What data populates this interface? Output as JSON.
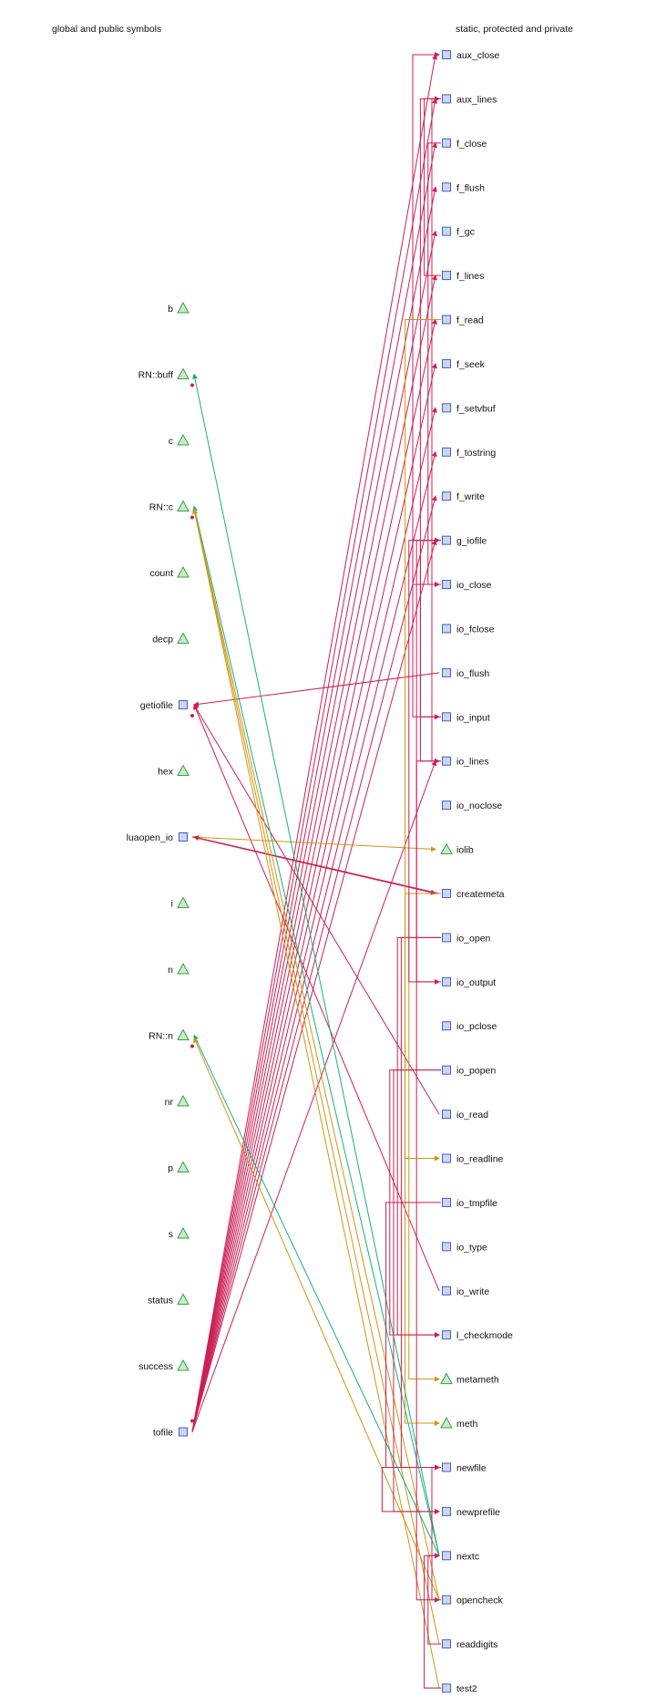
{
  "headers": {
    "left": "global and public symbols",
    "right": "static, protected and private"
  },
  "colors": {
    "call": "#cc1f56",
    "use_green": "#18b07a",
    "use_orange": "#cf9514",
    "box_fill": "#c8d8f4",
    "box_stroke": "#4a5bbf",
    "tri_fill": "#c8ecc8",
    "tri_stroke": "#38a048"
  },
  "left_symbols": [
    {
      "id": "b",
      "label": "b",
      "shape": "triangle"
    },
    {
      "id": "RN::buff",
      "label": "RN::buff",
      "shape": "triangle"
    },
    {
      "id": "c",
      "label": "c",
      "shape": "triangle"
    },
    {
      "id": "RN::c",
      "label": "RN::c",
      "shape": "triangle"
    },
    {
      "id": "count",
      "label": "count",
      "shape": "triangle"
    },
    {
      "id": "decp",
      "label": "decp",
      "shape": "triangle"
    },
    {
      "id": "getiofile",
      "label": "getiofile",
      "shape": "box"
    },
    {
      "id": "hex",
      "label": "hex",
      "shape": "triangle"
    },
    {
      "id": "luaopen_io",
      "label": "luaopen_io",
      "shape": "box"
    },
    {
      "id": "i",
      "label": "i",
      "shape": "triangle"
    },
    {
      "id": "n",
      "label": "n",
      "shape": "triangle"
    },
    {
      "id": "RN::n",
      "label": "RN::n",
      "shape": "triangle"
    },
    {
      "id": "nr",
      "label": "nr",
      "shape": "triangle"
    },
    {
      "id": "p",
      "label": "p",
      "shape": "triangle"
    },
    {
      "id": "s",
      "label": "s",
      "shape": "triangle"
    },
    {
      "id": "status",
      "label": "status",
      "shape": "triangle"
    },
    {
      "id": "success",
      "label": "success",
      "shape": "triangle"
    },
    {
      "id": "tofile",
      "label": "tofile",
      "shape": "box"
    }
  ],
  "right_symbols": [
    {
      "id": "aux_close",
      "label": "aux_close",
      "shape": "box"
    },
    {
      "id": "aux_lines",
      "label": "aux_lines",
      "shape": "box"
    },
    {
      "id": "f_close",
      "label": "f_close",
      "shape": "box"
    },
    {
      "id": "f_flush",
      "label": "f_flush",
      "shape": "box"
    },
    {
      "id": "f_gc",
      "label": "f_gc",
      "shape": "box"
    },
    {
      "id": "f_lines",
      "label": "f_lines",
      "shape": "box"
    },
    {
      "id": "f_read",
      "label": "f_read",
      "shape": "box"
    },
    {
      "id": "f_seek",
      "label": "f_seek",
      "shape": "box"
    },
    {
      "id": "f_setvbuf",
      "label": "f_setvbuf",
      "shape": "box"
    },
    {
      "id": "f_tostring",
      "label": "f_tostring",
      "shape": "box"
    },
    {
      "id": "f_write",
      "label": "f_write",
      "shape": "box"
    },
    {
      "id": "g_iofile",
      "label": "g_iofile",
      "shape": "box"
    },
    {
      "id": "io_close",
      "label": "io_close",
      "shape": "box"
    },
    {
      "id": "io_fclose",
      "label": "io_fclose",
      "shape": "box"
    },
    {
      "id": "io_flush",
      "label": "io_flush",
      "shape": "box"
    },
    {
      "id": "io_input",
      "label": "io_input",
      "shape": "box"
    },
    {
      "id": "io_lines",
      "label": "io_lines",
      "shape": "box"
    },
    {
      "id": "io_noclose",
      "label": "io_noclose",
      "shape": "box"
    },
    {
      "id": "iolib",
      "label": "iolib",
      "shape": "triangle"
    },
    {
      "id": "createmeta",
      "label": "createmeta",
      "shape": "box"
    },
    {
      "id": "io_open",
      "label": "io_open",
      "shape": "box"
    },
    {
      "id": "io_output",
      "label": "io_output",
      "shape": "box"
    },
    {
      "id": "io_pclose",
      "label": "io_pclose",
      "shape": "box"
    },
    {
      "id": "io_popen",
      "label": "io_popen",
      "shape": "box"
    },
    {
      "id": "io_read",
      "label": "io_read",
      "shape": "box"
    },
    {
      "id": "io_readline",
      "label": "io_readline",
      "shape": "box"
    },
    {
      "id": "io_tmpfile",
      "label": "io_tmpfile",
      "shape": "box"
    },
    {
      "id": "io_type",
      "label": "io_type",
      "shape": "box"
    },
    {
      "id": "io_write",
      "label": "io_write",
      "shape": "box"
    },
    {
      "id": "l_checkmode",
      "label": "l_checkmode",
      "shape": "box"
    },
    {
      "id": "metameth",
      "label": "metameth",
      "shape": "triangle"
    },
    {
      "id": "meth",
      "label": "meth",
      "shape": "triangle"
    },
    {
      "id": "newfile",
      "label": "newfile",
      "shape": "box"
    },
    {
      "id": "newprefile",
      "label": "newprefile",
      "shape": "box"
    },
    {
      "id": "nextc",
      "label": "nextc",
      "shape": "box"
    },
    {
      "id": "opencheck",
      "label": "opencheck",
      "shape": "box"
    },
    {
      "id": "readdigits",
      "label": "readdigits",
      "shape": "box"
    },
    {
      "id": "test2",
      "label": "test2",
      "shape": "box"
    }
  ],
  "edges_left_to_right": [
    {
      "from": "tofile",
      "to": "aux_close",
      "kind": "call"
    },
    {
      "from": "tofile",
      "to": "aux_lines",
      "kind": "call"
    },
    {
      "from": "tofile",
      "to": "f_close",
      "kind": "call"
    },
    {
      "from": "tofile",
      "to": "f_flush",
      "kind": "call"
    },
    {
      "from": "tofile",
      "to": "f_gc",
      "kind": "call"
    },
    {
      "from": "tofile",
      "to": "f_lines",
      "kind": "call"
    },
    {
      "from": "tofile",
      "to": "f_read",
      "kind": "call"
    },
    {
      "from": "tofile",
      "to": "f_seek",
      "kind": "call"
    },
    {
      "from": "tofile",
      "to": "f_setvbuf",
      "kind": "call"
    },
    {
      "from": "tofile",
      "to": "f_tostring",
      "kind": "call"
    },
    {
      "from": "tofile",
      "to": "f_write",
      "kind": "call"
    },
    {
      "from": "tofile",
      "to": "g_iofile",
      "kind": "call"
    },
    {
      "from": "tofile",
      "to": "io_lines",
      "kind": "call"
    },
    {
      "from": "io_flush",
      "to": "getiofile",
      "kind": "call",
      "reverse": true
    },
    {
      "from": "io_read",
      "to": "getiofile",
      "kind": "call",
      "reverse": true
    },
    {
      "from": "io_write",
      "to": "getiofile",
      "kind": "call",
      "reverse": true
    },
    {
      "from": "luaopen_io",
      "to": "iolib",
      "kind": "use_orange"
    },
    {
      "from": "luaopen_io",
      "to": "createmeta",
      "kind": "call"
    },
    {
      "from": "createmeta",
      "to": "luaopen_io",
      "kind": "call",
      "reverse": true
    },
    {
      "from": "nextc",
      "to": "RN::buff",
      "kind": "use_green",
      "reverse": true
    },
    {
      "from": "nextc",
      "to": "RN::c",
      "kind": "use_green",
      "reverse": true
    },
    {
      "from": "readdigits",
      "to": "RN::c",
      "kind": "use_orange",
      "reverse": true
    },
    {
      "from": "test2",
      "to": "RN::c",
      "kind": "use_orange",
      "reverse": true
    },
    {
      "from": "opencheck",
      "to": "RN::c",
      "kind": "use_orange",
      "reverse": true
    },
    {
      "from": "nextc",
      "to": "RN::n",
      "kind": "use_green",
      "reverse": true
    },
    {
      "from": "opencheck",
      "to": "RN::n",
      "kind": "use_orange",
      "reverse": true
    }
  ],
  "edges_right_internal": [
    {
      "from": "aux_lines",
      "to": "io_lines",
      "kind": "call"
    },
    {
      "from": "f_close",
      "to": "io_close",
      "kind": "call"
    },
    {
      "from": "f_lines",
      "to": "aux_lines",
      "kind": "call"
    },
    {
      "from": "g_iofile",
      "to": "io_input",
      "kind": "call"
    },
    {
      "from": "g_iofile",
      "to": "io_output",
      "kind": "call"
    },
    {
      "from": "io_close",
      "to": "aux_close",
      "kind": "call"
    },
    {
      "from": "createmeta",
      "to": "metameth",
      "kind": "use_orange"
    },
    {
      "from": "createmeta",
      "to": "meth",
      "kind": "use_orange"
    },
    {
      "from": "io_open",
      "to": "newfile",
      "kind": "call"
    },
    {
      "from": "io_open",
      "to": "l_checkmode",
      "kind": "call"
    },
    {
      "from": "io_popen",
      "to": "newprefile",
      "kind": "call"
    },
    {
      "from": "io_popen",
      "to": "l_checkmode",
      "kind": "call"
    },
    {
      "from": "io_tmpfile",
      "to": "newfile",
      "kind": "call"
    },
    {
      "from": "newfile",
      "to": "newprefile",
      "kind": "call"
    },
    {
      "from": "opencheck",
      "to": "newfile",
      "kind": "call"
    },
    {
      "from": "readdigits",
      "to": "nextc",
      "kind": "call"
    },
    {
      "from": "test2",
      "to": "nextc",
      "kind": "call"
    },
    {
      "from": "io_lines",
      "to": "aux_lines",
      "kind": "call"
    },
    {
      "from": "io_lines",
      "to": "opencheck",
      "kind": "call"
    },
    {
      "from": "io_input",
      "to": "g_iofile",
      "kind": "call"
    },
    {
      "from": "io_output",
      "to": "g_iofile",
      "kind": "call"
    },
    {
      "from": "f_read",
      "to": "io_readline",
      "kind": "use_orange"
    }
  ]
}
